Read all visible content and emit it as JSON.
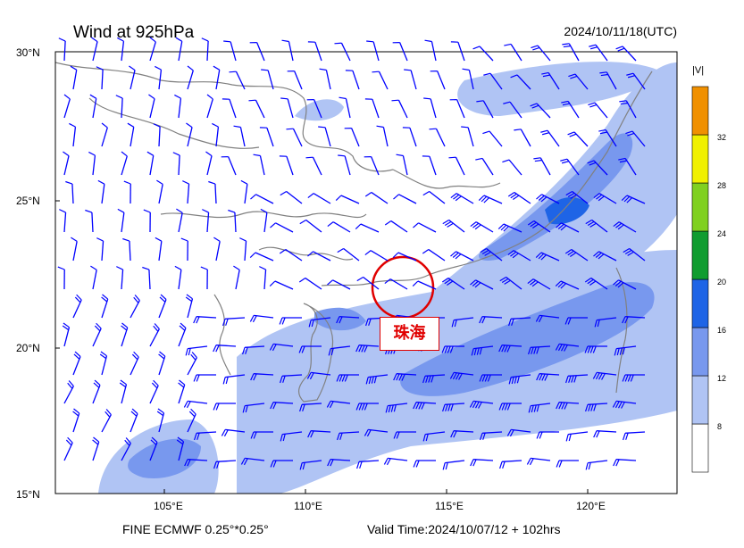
{
  "header": {
    "title": "Wind at 925hPa",
    "timestamp": "2024/10/11/18(UTC)"
  },
  "footer": {
    "model": "FINE ECMWF 0.25°*0.25°",
    "valid_time": "Valid Time:2024/10/07/12 + 102hrs"
  },
  "map": {
    "lat_labels": [
      "30°N",
      "25°N",
      "20°N",
      "15°N"
    ],
    "lon_labels": [
      "105°E",
      "110°E",
      "115°E",
      "120°E"
    ],
    "lon_range": [
      101,
      123.5
    ],
    "lat_range": [
      15,
      30
    ],
    "highlight": {
      "label": "珠海",
      "color": "#e00000"
    },
    "wind_color": "#0000ff"
  },
  "legend": {
    "title": "|V|",
    "levels": [
      {
        "min": 4,
        "max": 8,
        "color": "#ffffff"
      },
      {
        "min": 8,
        "max": 12,
        "color": "#b0c4f4"
      },
      {
        "min": 12,
        "max": 16,
        "color": "#7898ee"
      },
      {
        "min": 16,
        "max": 20,
        "color": "#1e64e6"
      },
      {
        "min": 20,
        "max": 24,
        "color": "#109c30"
      },
      {
        "min": 24,
        "max": 28,
        "color": "#80d020"
      },
      {
        "min": 28,
        "max": 32,
        "color": "#f0f000"
      },
      {
        "min": 32,
        "max": 36,
        "color": "#f09000"
      }
    ],
    "tick_labels": [
      "8",
      "12",
      "16",
      "20",
      "24",
      "28",
      "32"
    ]
  }
}
